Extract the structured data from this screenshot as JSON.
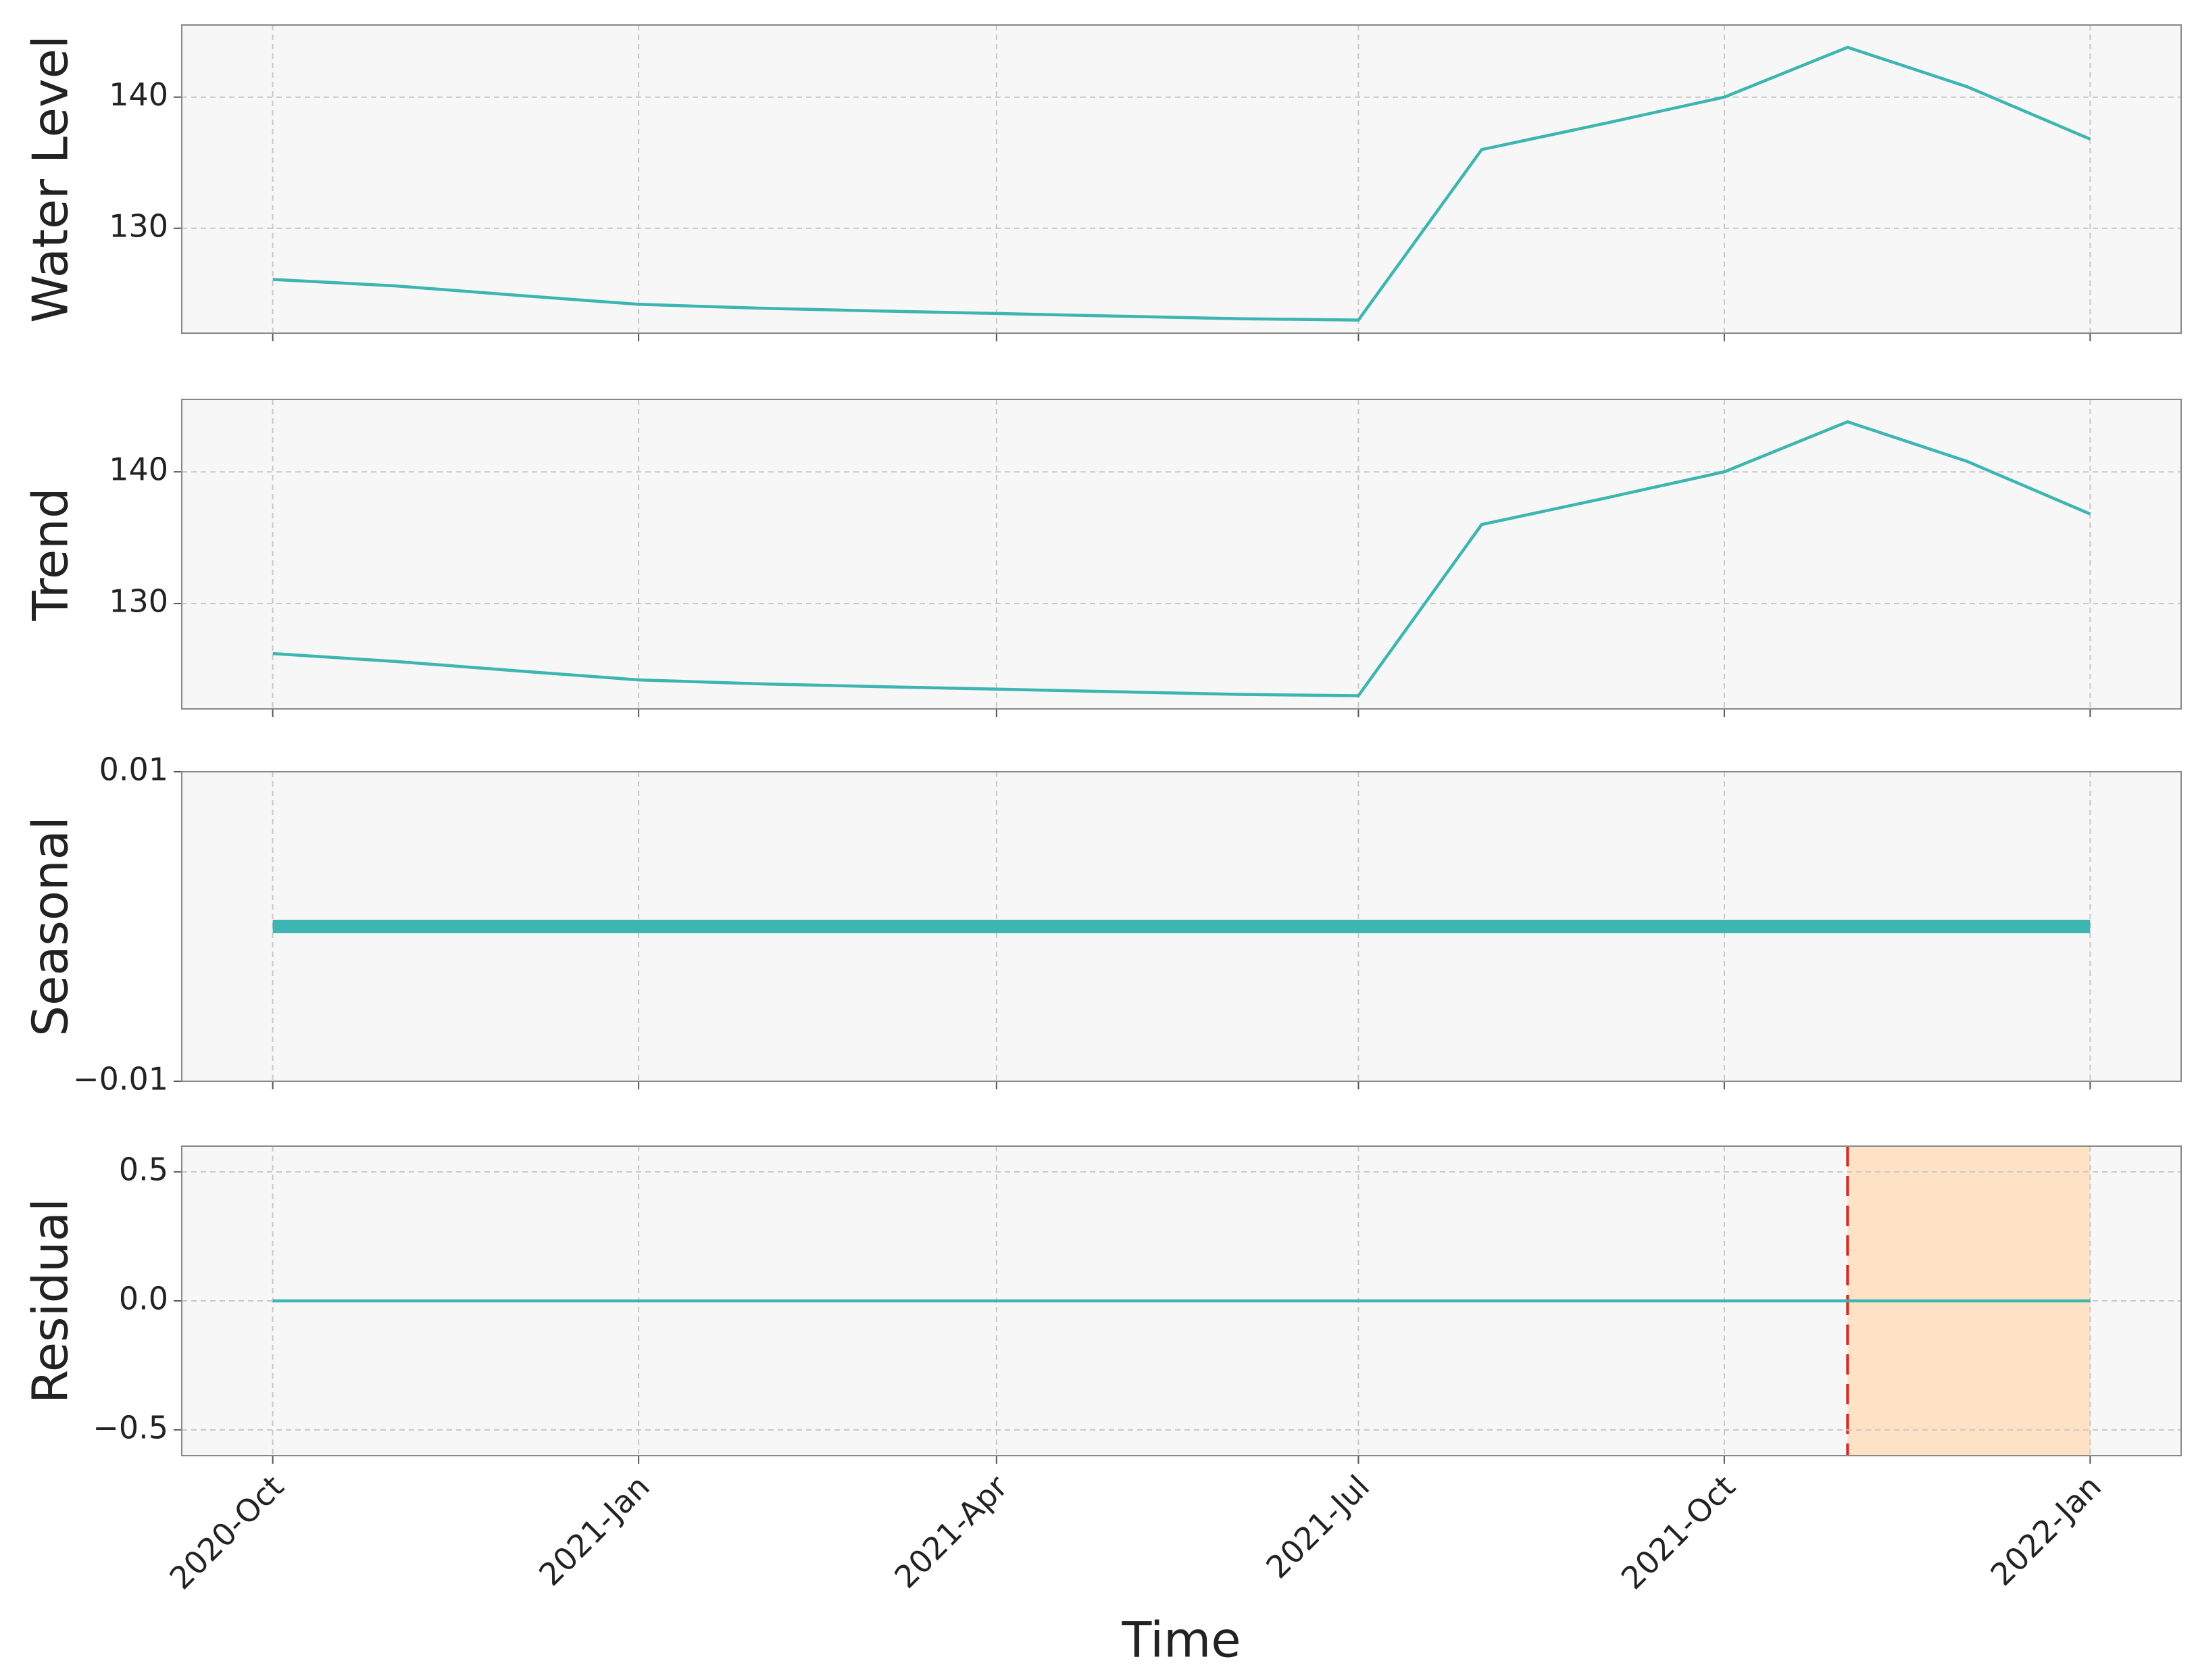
{
  "chart_data": [
    {
      "type": "line",
      "ylabel": "Water Level",
      "x": [
        "2020-10",
        "2020-11",
        "2020-12",
        "2021-01",
        "2021-02",
        "2021-03",
        "2021-04",
        "2021-05",
        "2021-06",
        "2021-07",
        "2021-08",
        "2021-09",
        "2021-10",
        "2021-11",
        "2021-12",
        "2022-01"
      ],
      "values": [
        126.1,
        125.6,
        124.9,
        124.2,
        123.9,
        123.7,
        123.5,
        123.3,
        123.1,
        123.0,
        136.0,
        138.0,
        140.0,
        143.8,
        140.8,
        136.8
      ],
      "color": "#3db5b1",
      "ylim": [
        122,
        145.5
      ],
      "yticks": [
        130,
        140
      ],
      "grid": true
    },
    {
      "type": "line",
      "ylabel": "Trend",
      "x": [
        "2020-10",
        "2020-11",
        "2020-12",
        "2021-01",
        "2021-02",
        "2021-03",
        "2021-04",
        "2021-05",
        "2021-06",
        "2021-07",
        "2021-08",
        "2021-09",
        "2021-10",
        "2021-11",
        "2021-12",
        "2022-01"
      ],
      "values": [
        126.2,
        125.6,
        124.9,
        124.2,
        123.9,
        123.7,
        123.5,
        123.3,
        123.1,
        123.0,
        136.0,
        138.0,
        140.0,
        143.8,
        140.8,
        136.8
      ],
      "color": "#3db5b1",
      "ylim": [
        122,
        145.5
      ],
      "yticks": [
        130,
        140
      ],
      "grid": true
    },
    {
      "type": "line",
      "ylabel": "Seasonal",
      "x": [
        "2020-10",
        "2020-11",
        "2020-12",
        "2021-01",
        "2021-02",
        "2021-03",
        "2021-04",
        "2021-05",
        "2021-06",
        "2021-07",
        "2021-08",
        "2021-09",
        "2021-10",
        "2021-11",
        "2021-12",
        "2022-01"
      ],
      "values": [
        0,
        0,
        0,
        0,
        0,
        0,
        0,
        0,
        0,
        0,
        0,
        0,
        0,
        0,
        0,
        0
      ],
      "color": "#3db5b1",
      "line_width": 20,
      "ylim": [
        -0.01,
        0.01
      ],
      "yticks": [
        {
          "value": -0.01,
          "label": "−0.01"
        },
        0.01
      ],
      "grid": true
    },
    {
      "type": "line",
      "ylabel": "Residual",
      "xlabel": "Time",
      "x": [
        "2020-10",
        "2020-11",
        "2020-12",
        "2021-01",
        "2021-02",
        "2021-03",
        "2021-04",
        "2021-05",
        "2021-06",
        "2021-07",
        "2021-08",
        "2021-09",
        "2021-10",
        "2021-11",
        "2021-12",
        "2022-01"
      ],
      "values": [
        0,
        0,
        0,
        0,
        0,
        0,
        0,
        0,
        0,
        0,
        0,
        0,
        0,
        0,
        0,
        0
      ],
      "color": "#3db5b1",
      "ylim": [
        -0.6,
        0.6
      ],
      "yticks": [
        {
          "value": -0.5,
          "label": "−0.5"
        },
        {
          "value": 0,
          "label": "0.0"
        },
        0.5
      ],
      "grid": true,
      "highlight": {
        "start": "2021-11",
        "end": "2022-01",
        "color": "#fddfbf",
        "edge_color": "#d62728"
      },
      "xticks": [
        {
          "value": "2020-10",
          "label": "2020-Oct"
        },
        {
          "value": "2021-01",
          "label": "2021-Jan"
        },
        {
          "value": "2021-04",
          "label": "2021-Apr"
        },
        {
          "value": "2021-07",
          "label": "2021-Jul"
        },
        {
          "value": "2021-10",
          "label": "2021-Oct"
        },
        {
          "value": "2022-01",
          "label": "2022-Jan"
        }
      ]
    }
  ]
}
